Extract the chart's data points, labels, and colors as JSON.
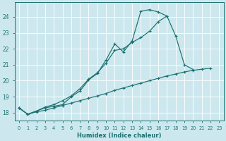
{
  "bg_color": "#cce8ee",
  "grid_color": "#b0d8e0",
  "line_color": "#1a7070",
  "marker": "+",
  "xlabel": "Humidex (Indice chaleur)",
  "ylim": [
    17.5,
    24.9
  ],
  "xlim": [
    -0.5,
    23.5
  ],
  "yticks": [
    18,
    19,
    20,
    21,
    22,
    23,
    24
  ],
  "xticks": [
    0,
    1,
    2,
    3,
    4,
    5,
    6,
    7,
    8,
    9,
    10,
    11,
    12,
    13,
    14,
    15,
    16,
    17,
    18,
    19,
    20,
    21,
    22,
    23
  ],
  "line1": [
    18.3,
    17.9,
    18.1,
    18.3,
    18.4,
    18.5,
    19.0,
    19.35,
    20.05,
    20.45,
    21.3,
    22.3,
    21.8,
    22.5,
    24.35,
    24.45,
    24.3,
    24.05,
    null,
    null,
    null,
    null,
    null,
    null
  ],
  "line2": [
    18.3,
    17.9,
    18.1,
    18.35,
    18.5,
    18.75,
    19.05,
    19.5,
    20.1,
    20.5,
    21.1,
    21.9,
    22.0,
    22.4,
    22.7,
    23.1,
    23.7,
    24.05,
    22.8,
    21.0,
    20.7,
    null,
    null,
    null
  ],
  "line3": [
    18.3,
    17.9,
    18.05,
    18.15,
    18.3,
    18.45,
    18.6,
    18.75,
    18.9,
    19.05,
    19.2,
    19.4,
    19.55,
    19.7,
    19.85,
    20.0,
    20.15,
    20.3,
    20.42,
    20.55,
    20.65,
    20.72,
    20.78,
    null
  ]
}
